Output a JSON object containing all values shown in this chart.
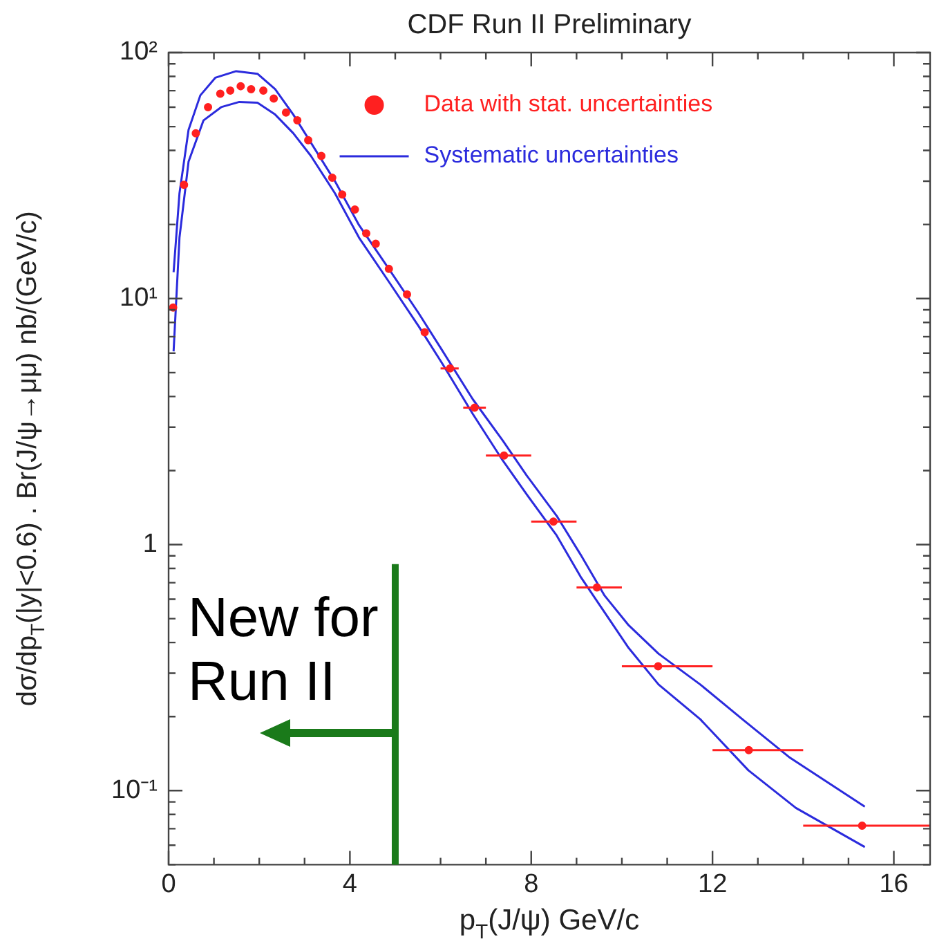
{
  "chart_data": {
    "type": "scatter",
    "title": "CDF Run II Preliminary",
    "xlabel": "p$_{T}$(J/ψ) GeV/c",
    "ylabel": "dσ/dp$_{T}$(|y|<0.6) . Br(J/ψ→μμ) nb/(GeV/c)",
    "log": "y",
    "grid": false,
    "legend": "top right",
    "xlim": [
      0,
      16.8
    ],
    "xticks": [
      0,
      {
        "value": 1,
        "label": null
      },
      {
        "value": 2,
        "label": null
      },
      {
        "value": 3,
        "label": null
      },
      4,
      {
        "value": 5,
        "label": null
      },
      {
        "value": 6,
        "label": null
      },
      {
        "value": 7,
        "label": null
      },
      8,
      {
        "value": 9,
        "label": null
      },
      {
        "value": 10,
        "label": null
      },
      {
        "value": 11,
        "label": null
      },
      12,
      {
        "value": 13,
        "label": null
      },
      {
        "value": 14,
        "label": null
      },
      {
        "value": 15,
        "label": null
      },
      16
    ],
    "ylim": [
      0.05,
      100
    ],
    "yticks": [
      {
        "value": 0.05,
        "label": null
      },
      {
        "value": 0.06,
        "label": null
      },
      {
        "value": 0.07,
        "label": null
      },
      {
        "value": 0.08,
        "label": null
      },
      {
        "value": 0.09,
        "label": null
      },
      {
        "value": 0.1,
        "label": "10⁻¹"
      },
      {
        "value": 0.2,
        "label": null
      },
      {
        "value": 0.3,
        "label": null
      },
      {
        "value": 0.4,
        "label": null
      },
      {
        "value": 0.5,
        "label": null
      },
      {
        "value": 0.6,
        "label": null
      },
      {
        "value": 0.7,
        "label": null
      },
      {
        "value": 0.8,
        "label": null
      },
      {
        "value": 0.9,
        "label": null
      },
      1,
      {
        "value": 2,
        "label": null
      },
      {
        "value": 3,
        "label": null
      },
      {
        "value": 4,
        "label": null
      },
      {
        "value": 5,
        "label": null
      },
      {
        "value": 6,
        "label": null
      },
      {
        "value": 7,
        "label": null
      },
      {
        "value": 8,
        "label": null
      },
      {
        "value": 9,
        "label": null
      },
      {
        "value": 10,
        "label": "10¹"
      },
      {
        "value": 20,
        "label": null
      },
      {
        "value": 30,
        "label": null
      },
      {
        "value": 40,
        "label": null
      },
      {
        "value": 50,
        "label": null
      },
      {
        "value": 60,
        "label": null
      },
      {
        "value": 70,
        "label": null
      },
      {
        "value": 80,
        "label": null
      },
      {
        "value": 90,
        "label": null
      },
      {
        "value": 100,
        "label": "10²"
      }
    ],
    "ref_lines": [
      {
        "axis": "x",
        "value": 5,
        "label": "New for Run II",
        "color": "#1a7a1a"
      }
    ],
    "series": [
      {
        "name": "Data with stat. uncertainties",
        "marker": "circle",
        "color": "#ff2020",
        "x": [
          0.1,
          0.34,
          0.6,
          0.87,
          1.14,
          1.36,
          1.59,
          1.82,
          2.09,
          2.32,
          2.59,
          2.84,
          3.08,
          3.37,
          3.61,
          3.83,
          4.11,
          4.36,
          4.57,
          4.86,
          5.26,
          5.65,
          6.21,
          6.75,
          7.4,
          8.49,
          9.45,
          10.8,
          12.8,
          15.3
        ],
        "values": [
          9.2,
          29,
          47,
          60,
          68,
          70,
          73,
          71,
          70,
          65,
          57,
          53,
          44,
          38,
          31,
          26.5,
          23,
          18.4,
          16.7,
          13.2,
          10.4,
          7.3,
          5.2,
          3.6,
          2.3,
          1.24,
          0.67,
          0.32,
          0.146,
          0.072
        ],
        "xerrors": [
          null,
          null,
          null,
          null,
          null,
          null,
          null,
          null,
          null,
          null,
          null,
          null,
          null,
          null,
          null,
          null,
          null,
          null,
          null,
          null,
          null,
          null,
          [
            6.0,
            6.4
          ],
          [
            6.5,
            7.0
          ],
          [
            7,
            8
          ],
          [
            8,
            9
          ],
          [
            9,
            10
          ],
          [
            10,
            12
          ],
          [
            12,
            14
          ],
          [
            14,
            16.8
          ]
        ]
      },
      {
        "name": "Systematic uncertainties",
        "type": "line",
        "marker": "none",
        "color": "#2b2bdd",
        "x": [
          0.11,
          0.24,
          0.44,
          0.7,
          1.03,
          1.49,
          1.96,
          2.35,
          2.75,
          3.14,
          3.67,
          4.2,
          4.86,
          5.52,
          6.05,
          6.71,
          7.37,
          7.9,
          8.56,
          9.09,
          9.62,
          10.15,
          10.81,
          11.73,
          12.66,
          13.71,
          15.36
        ],
        "values": [
          12.8,
          26.8,
          48.5,
          67,
          79,
          84,
          82,
          71,
          56,
          43,
          30,
          19.9,
          13.2,
          8.7,
          6.1,
          3.9,
          2.65,
          1.91,
          1.31,
          0.91,
          0.62,
          0.47,
          0.36,
          0.27,
          0.195,
          0.136,
          0.086
        ]
      },
      {
        "type": "line",
        "marker": "none",
        "color": "#2b2bdd",
        "x": [
          0.11,
          0.24,
          0.44,
          0.77,
          1.16,
          1.56,
          1.96,
          2.35,
          2.75,
          3.14,
          3.67,
          4.2,
          4.86,
          5.52,
          6.05,
          6.71,
          7.37,
          7.9,
          8.56,
          9.09,
          9.62,
          10.15,
          10.81,
          11.73,
          12.79,
          13.84,
          15.36
        ],
        "values": [
          6.1,
          17.7,
          36,
          53,
          60,
          63,
          62.5,
          56,
          47,
          38,
          26.8,
          17.7,
          11.7,
          7.7,
          5.4,
          3.4,
          2.2,
          1.6,
          1.09,
          0.74,
          0.53,
          0.38,
          0.27,
          0.195,
          0.121,
          0.085,
          0.059
        ]
      }
    ]
  }
}
